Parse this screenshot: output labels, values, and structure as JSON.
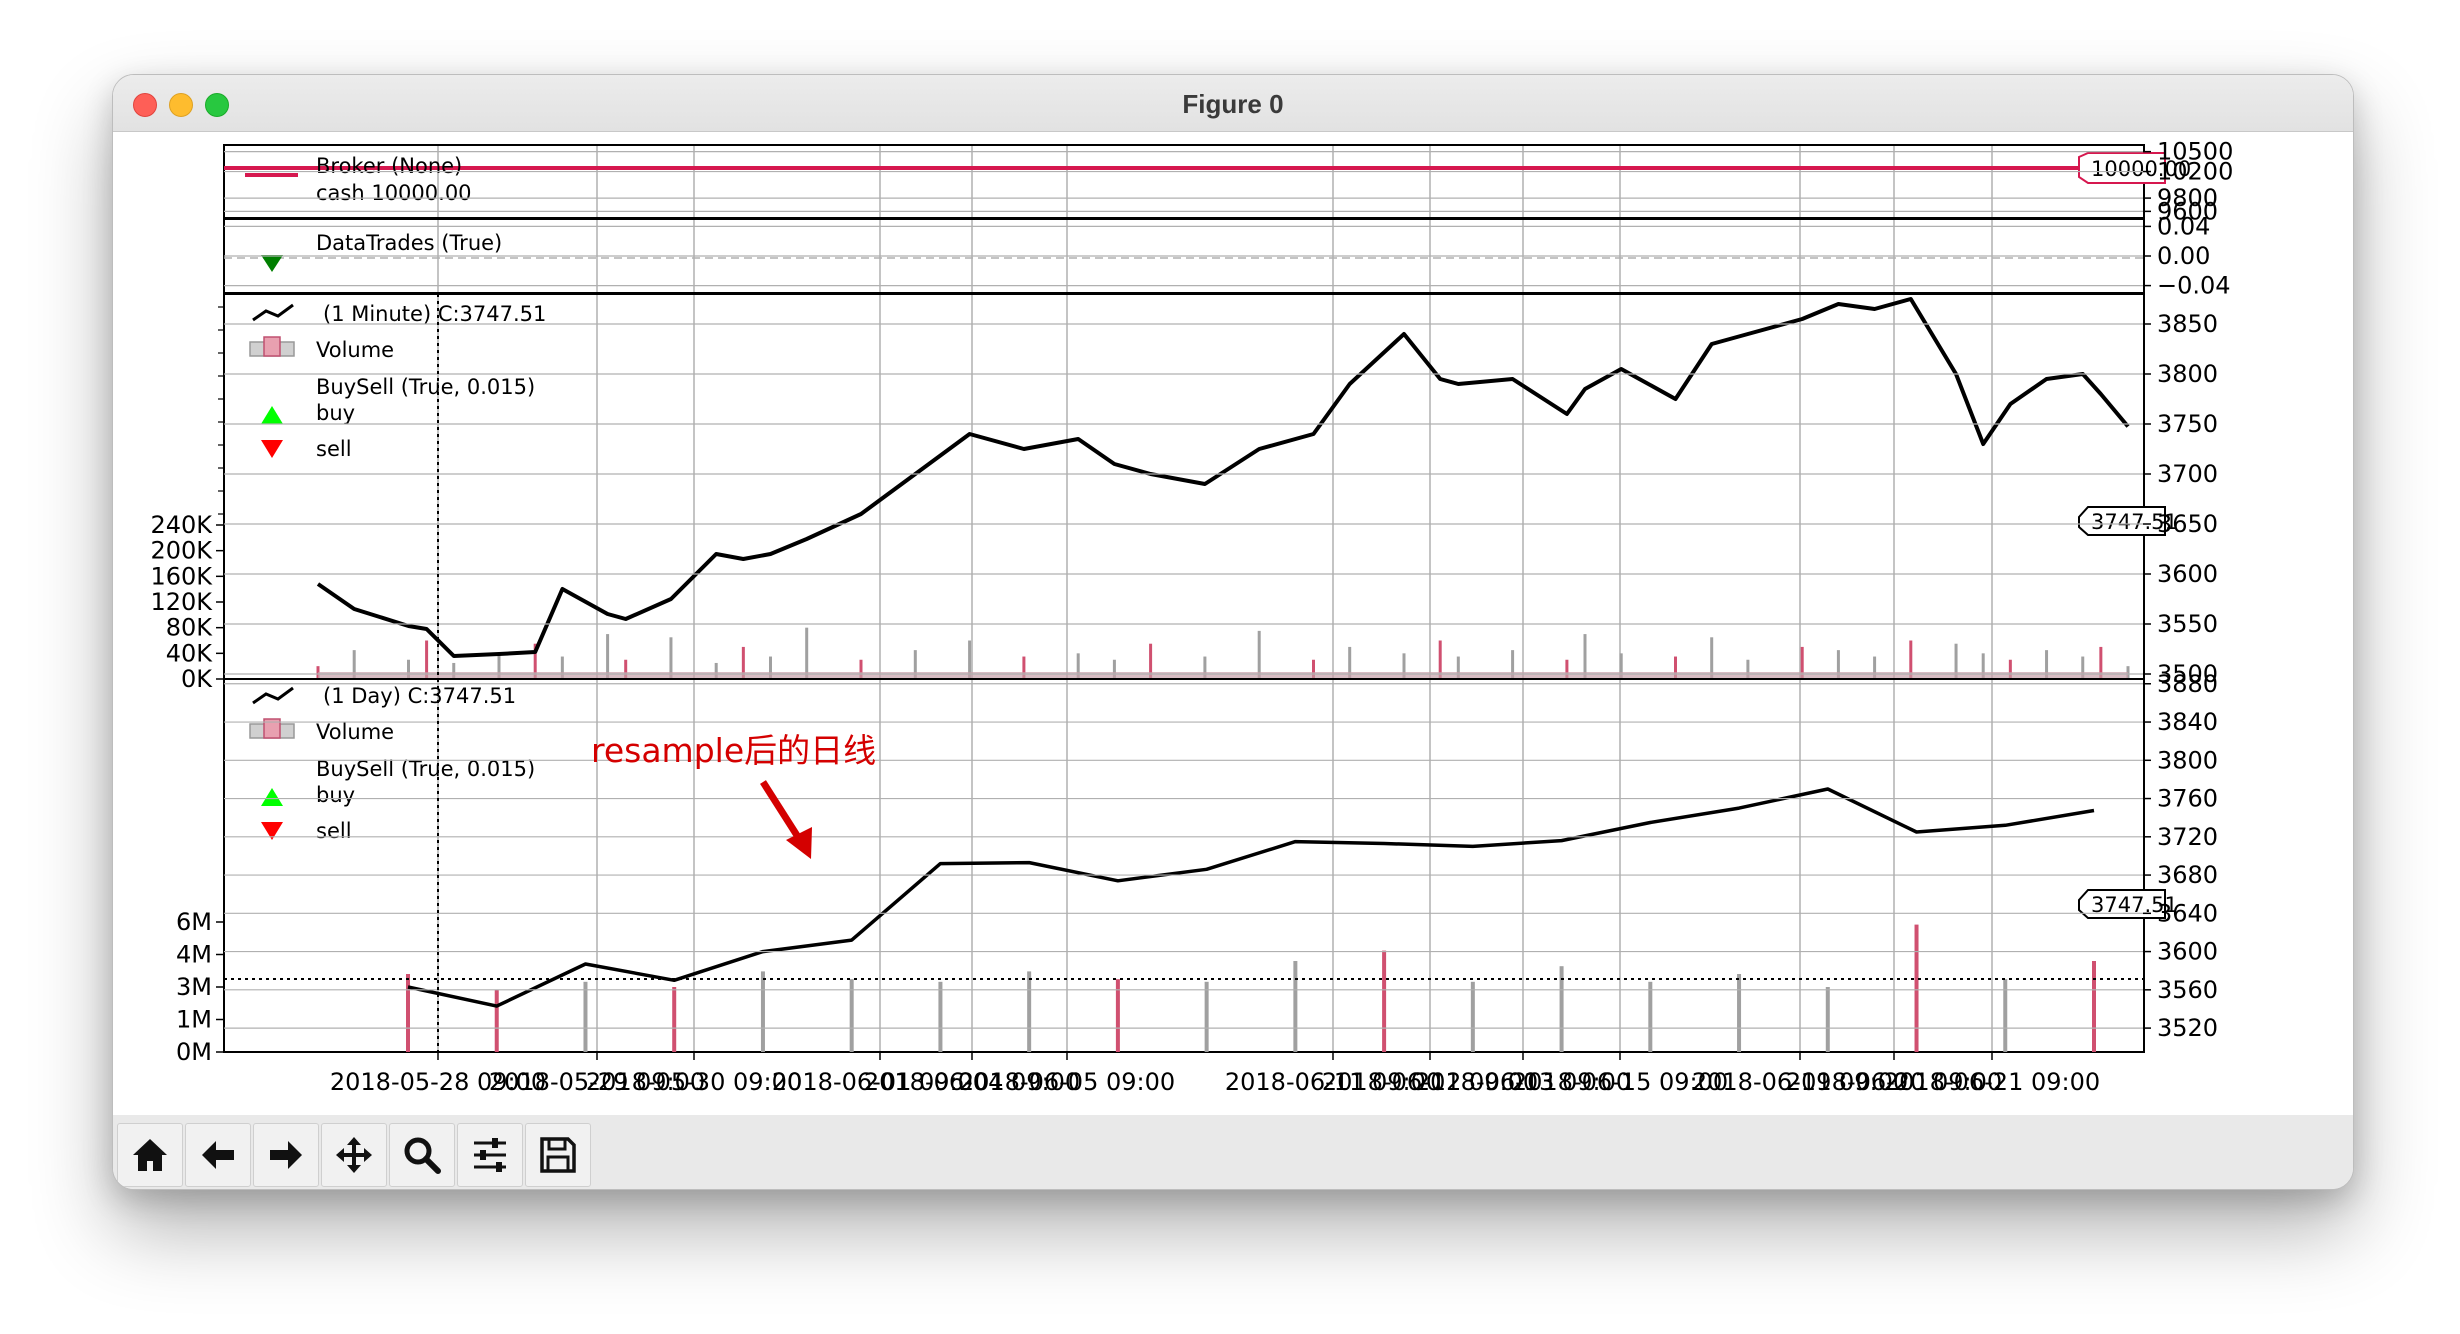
{
  "window": {
    "title": "Figure 0"
  },
  "toolbar": {
    "buttons": [
      {
        "name": "home-button",
        "icon": "home-icon"
      },
      {
        "name": "back-button",
        "icon": "arrow-left-icon"
      },
      {
        "name": "forward-button",
        "icon": "arrow-right-icon"
      },
      {
        "name": "pan-button",
        "icon": "move-icon"
      },
      {
        "name": "zoom-button",
        "icon": "magnifier-icon"
      },
      {
        "name": "configure-subplots-button",
        "icon": "sliders-icon"
      },
      {
        "name": "save-button",
        "icon": "floppy-disk-icon"
      }
    ]
  },
  "colors": {
    "broker_line": "#d6184f",
    "price_line": "#000000",
    "volume_up": "#d05070",
    "volume_down": "#a0a0a0",
    "buy_marker": "#00ff00",
    "sell_marker": "#ff0000",
    "datatrades_marker": "#007f00",
    "annotation": "#d40000",
    "grid": "#b0b0b0"
  },
  "annotation": {
    "text": "resample后的日线"
  },
  "x_axis": {
    "tick_labels": [
      "2018-05-28 09:00",
      "2018-05-29 09:00",
      "2018-05-30 09:00",
      "2018-06-01 09:00",
      "2018-06-04 09:00",
      "2018-06-05 09:00",
      "2018-06-11 09:00",
      "2018-06-12 09:00",
      "2018-06-13 09:00",
      "2018-06-15 09:00",
      "2018-06-19 09:00",
      "2018-06-20 09:00",
      "2018-06-21 09:00"
    ]
  },
  "chart_data": [
    {
      "type": "line",
      "panel": "broker",
      "legend": [
        "Broker (None)",
        "cash 10000.00"
      ],
      "yticks": [
        "10500",
        "10200",
        "9800",
        "9600"
      ],
      "ylim": [
        9500,
        10600
      ],
      "value": 10000.0,
      "value_label": "10000.00"
    },
    {
      "type": "scatter",
      "panel": "datatrades",
      "legend": [
        "DataTrades (True)"
      ],
      "yticks": [
        "0.04",
        "0.00",
        "−0.04"
      ],
      "ylim": [
        -0.05,
        0.05
      ],
      "values": []
    },
    {
      "type": "line",
      "panel": "1-minute",
      "legend": [
        "(1 Minute) C:3747.51",
        "Volume",
        "BuySell (True, 0.015)",
        "buy",
        "sell"
      ],
      "yticks": [
        "3850",
        "3800",
        "3750",
        "3700",
        "3650",
        "3600",
        "3550",
        "3500"
      ],
      "ylim": [
        3495,
        3880
      ],
      "volume_ticks": [
        "240K",
        "200K",
        "160K",
        "120K",
        "80K",
        "40K",
        "0K"
      ],
      "volume_lim": [
        0,
        240000
      ],
      "last_label": "3747.51",
      "x": [
        0.0,
        0.02,
        0.05,
        0.06,
        0.075,
        0.1,
        0.12,
        0.135,
        0.16,
        0.17,
        0.195,
        0.22,
        0.235,
        0.25,
        0.27,
        0.3,
        0.33,
        0.36,
        0.39,
        0.42,
        0.44,
        0.46,
        0.49,
        0.52,
        0.55,
        0.57,
        0.6,
        0.62,
        0.63,
        0.66,
        0.69,
        0.7,
        0.72,
        0.75,
        0.77,
        0.79,
        0.82,
        0.84,
        0.86,
        0.88,
        0.905,
        0.92,
        0.935,
        0.955,
        0.975,
        0.985,
        1.0
      ],
      "values": [
        3590,
        3565,
        3548,
        3545,
        3518,
        3520,
        3522,
        3585,
        3560,
        3555,
        3575,
        3620,
        3615,
        3620,
        3635,
        3660,
        3700,
        3740,
        3725,
        3735,
        3710,
        3700,
        3690,
        3725,
        3740,
        3790,
        3840,
        3795,
        3790,
        3795,
        3760,
        3785,
        3805,
        3775,
        3830,
        3840,
        3855,
        3870,
        3865,
        3875,
        3800,
        3730,
        3770,
        3795,
        3800,
        3780,
        3747.51
      ],
      "volume": [
        20000,
        45000,
        30000,
        60000,
        25000,
        40000,
        55000,
        35000,
        70000,
        30000,
        65000,
        25000,
        50000,
        35000,
        80000,
        30000,
        45000,
        60000,
        35000,
        40000,
        30000,
        55000,
        35000,
        75000,
        30000,
        50000,
        40000,
        60000,
        35000,
        45000,
        30000,
        70000,
        40000,
        35000,
        65000,
        30000,
        50000,
        45000,
        35000,
        60000,
        55000,
        40000,
        30000,
        45000,
        35000,
        50000,
        20000
      ]
    },
    {
      "type": "line",
      "panel": "1-day",
      "legend": [
        "(1 Day) C:3747.51",
        "Volume",
        "BuySell (True, 0.015)",
        "buy",
        "sell"
      ],
      "yticks": [
        "3880",
        "3840",
        "3800",
        "3760",
        "3720",
        "3680",
        "3640",
        "3600",
        "3560",
        "3520"
      ],
      "ylim": [
        3495,
        3885
      ],
      "volume_ticks": [
        "6M",
        "4M",
        "3M",
        "1M",
        "0M"
      ],
      "volume_lim": [
        0,
        8000000
      ],
      "last_label": "3747.51",
      "x": [
        0,
        1,
        2,
        3,
        4,
        5,
        6,
        7,
        8,
        9,
        10,
        11,
        12,
        13,
        14,
        15,
        16,
        17,
        18,
        19
      ],
      "values": [
        3563,
        3543,
        3587,
        3570,
        3600,
        3612,
        3692,
        3693,
        3674,
        3686,
        3715,
        3713,
        3710,
        3716,
        3735,
        3750,
        3770,
        3725,
        3732,
        3747.51
      ],
      "volume": [
        3000000,
        2400000,
        2700000,
        2500000,
        3100000,
        2800000,
        2700000,
        3100000,
        2800000,
        2700000,
        3500000,
        3900000,
        2700000,
        3300000,
        2700000,
        3000000,
        2500000,
        4900000,
        2800000,
        3500000
      ],
      "volume_up": [
        true,
        true,
        false,
        true,
        false,
        false,
        false,
        false,
        true,
        false,
        false,
        true,
        false,
        false,
        false,
        false,
        false,
        true,
        false,
        true
      ]
    }
  ]
}
